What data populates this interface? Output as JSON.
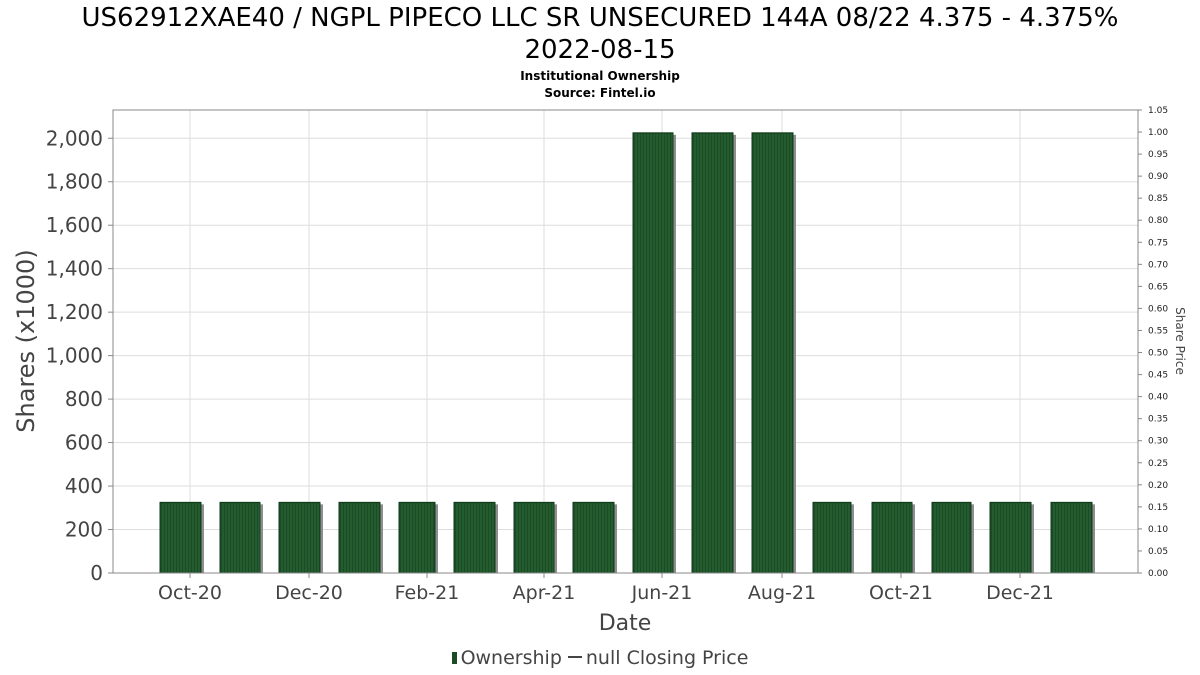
{
  "chart_data": {
    "type": "bar",
    "title": "US62912XAE40 / NGPL PIPECO LLC SR UNSECURED 144A 08/22 4.375 - 4.375%\n2022-08-15",
    "subtitle": "Institutional Ownership\nSource: Fintel.io",
    "xlabel": "Date",
    "ylabel": "Shares (x1000)",
    "y2label": "Share Price",
    "x_tick_labels": [
      "Oct-20",
      "Dec-20",
      "Feb-21",
      "Apr-21",
      "Jun-21",
      "Aug-21",
      "Oct-21",
      "Dec-21"
    ],
    "y_tick_labels": [
      "0",
      "200",
      "400",
      "600",
      "800",
      "1,000",
      "1,200",
      "1,400",
      "1,600",
      "1,800",
      "2,000"
    ],
    "y2_tick_labels": [
      "0.00",
      "0.05",
      "0.10",
      "0.15",
      "0.20",
      "0.25",
      "0.30",
      "0.35",
      "0.40",
      "0.45",
      "0.50",
      "0.55",
      "0.60",
      "0.65",
      "0.70",
      "0.75",
      "0.80",
      "0.85",
      "0.90",
      "0.95",
      "1.00",
      "1.05"
    ],
    "ylim": [
      0,
      2130
    ],
    "y2lim": [
      0,
      1.05
    ],
    "grid": true,
    "legend_position": "bottom",
    "bar_color": "#1a4d26",
    "series": [
      {
        "name": "Ownership",
        "values": [
          325,
          325,
          325,
          325,
          325,
          325,
          325,
          325,
          2025,
          2025,
          2025,
          325,
          325,
          325,
          325,
          325
        ]
      }
    ],
    "legend": {
      "ownership_label": "Ownership",
      "price_label": "null Closing Price"
    }
  }
}
